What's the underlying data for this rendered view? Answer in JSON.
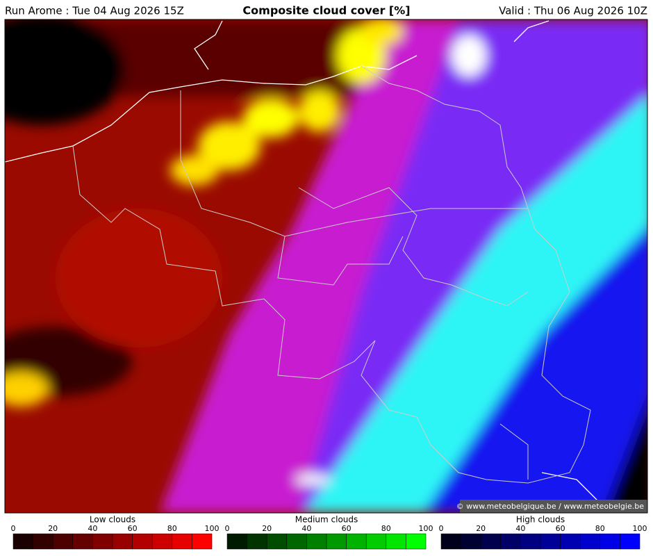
{
  "header": {
    "run": "Run Arome : Tue 04 Aug 2026 15Z",
    "title": "Composite cloud cover [%]",
    "valid": "Valid : Thu 06 Aug 2026 10Z"
  },
  "copyright": "© www.meteobelgique.be / www.meteobelgie.be",
  "legends": [
    {
      "title": "Low clouds",
      "ticks": [
        0,
        20,
        40,
        60,
        80,
        100
      ],
      "colors": [
        "#1a0000",
        "#330000",
        "#4d0000",
        "#660000",
        "#800000",
        "#990000",
        "#b30000",
        "#cc0000",
        "#e60000",
        "#ff0000"
      ]
    },
    {
      "title": "Medium clouds",
      "ticks": [
        0,
        20,
        40,
        60,
        80,
        100
      ],
      "colors": [
        "#001a00",
        "#003300",
        "#004d00",
        "#006600",
        "#008000",
        "#009900",
        "#00b300",
        "#00cc00",
        "#00e600",
        "#00ff00"
      ]
    },
    {
      "title": "High clouds",
      "ticks": [
        0,
        20,
        40,
        60,
        80,
        100
      ],
      "colors": [
        "#00001a",
        "#000033",
        "#00004d",
        "#000066",
        "#000080",
        "#000099",
        "#0000b3",
        "#0000cc",
        "#0000e6",
        "#0000ff"
      ]
    }
  ]
}
